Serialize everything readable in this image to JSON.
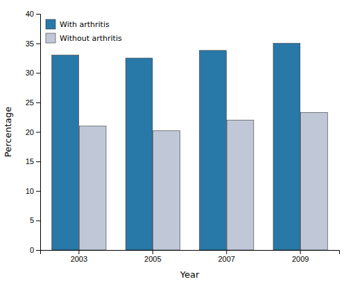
{
  "chart_data": {
    "type": "bar",
    "categories": [
      "2003",
      "2005",
      "2007",
      "2009"
    ],
    "series": [
      {
        "name": "With arthritis",
        "color": "#2878a8",
        "values": [
          33.0,
          32.5,
          33.8,
          35.0
        ]
      },
      {
        "name": "Without arthritis",
        "color": "#c0c8d8",
        "values": [
          21.0,
          20.2,
          22.0,
          23.3
        ]
      }
    ],
    "xlabel": "Year",
    "ylabel": "Percentage",
    "ylim": [
      0,
      40
    ],
    "yticks": [
      0,
      5,
      10,
      15,
      20,
      25,
      30,
      35,
      40
    ],
    "legend": "upper left",
    "grid": false
  }
}
